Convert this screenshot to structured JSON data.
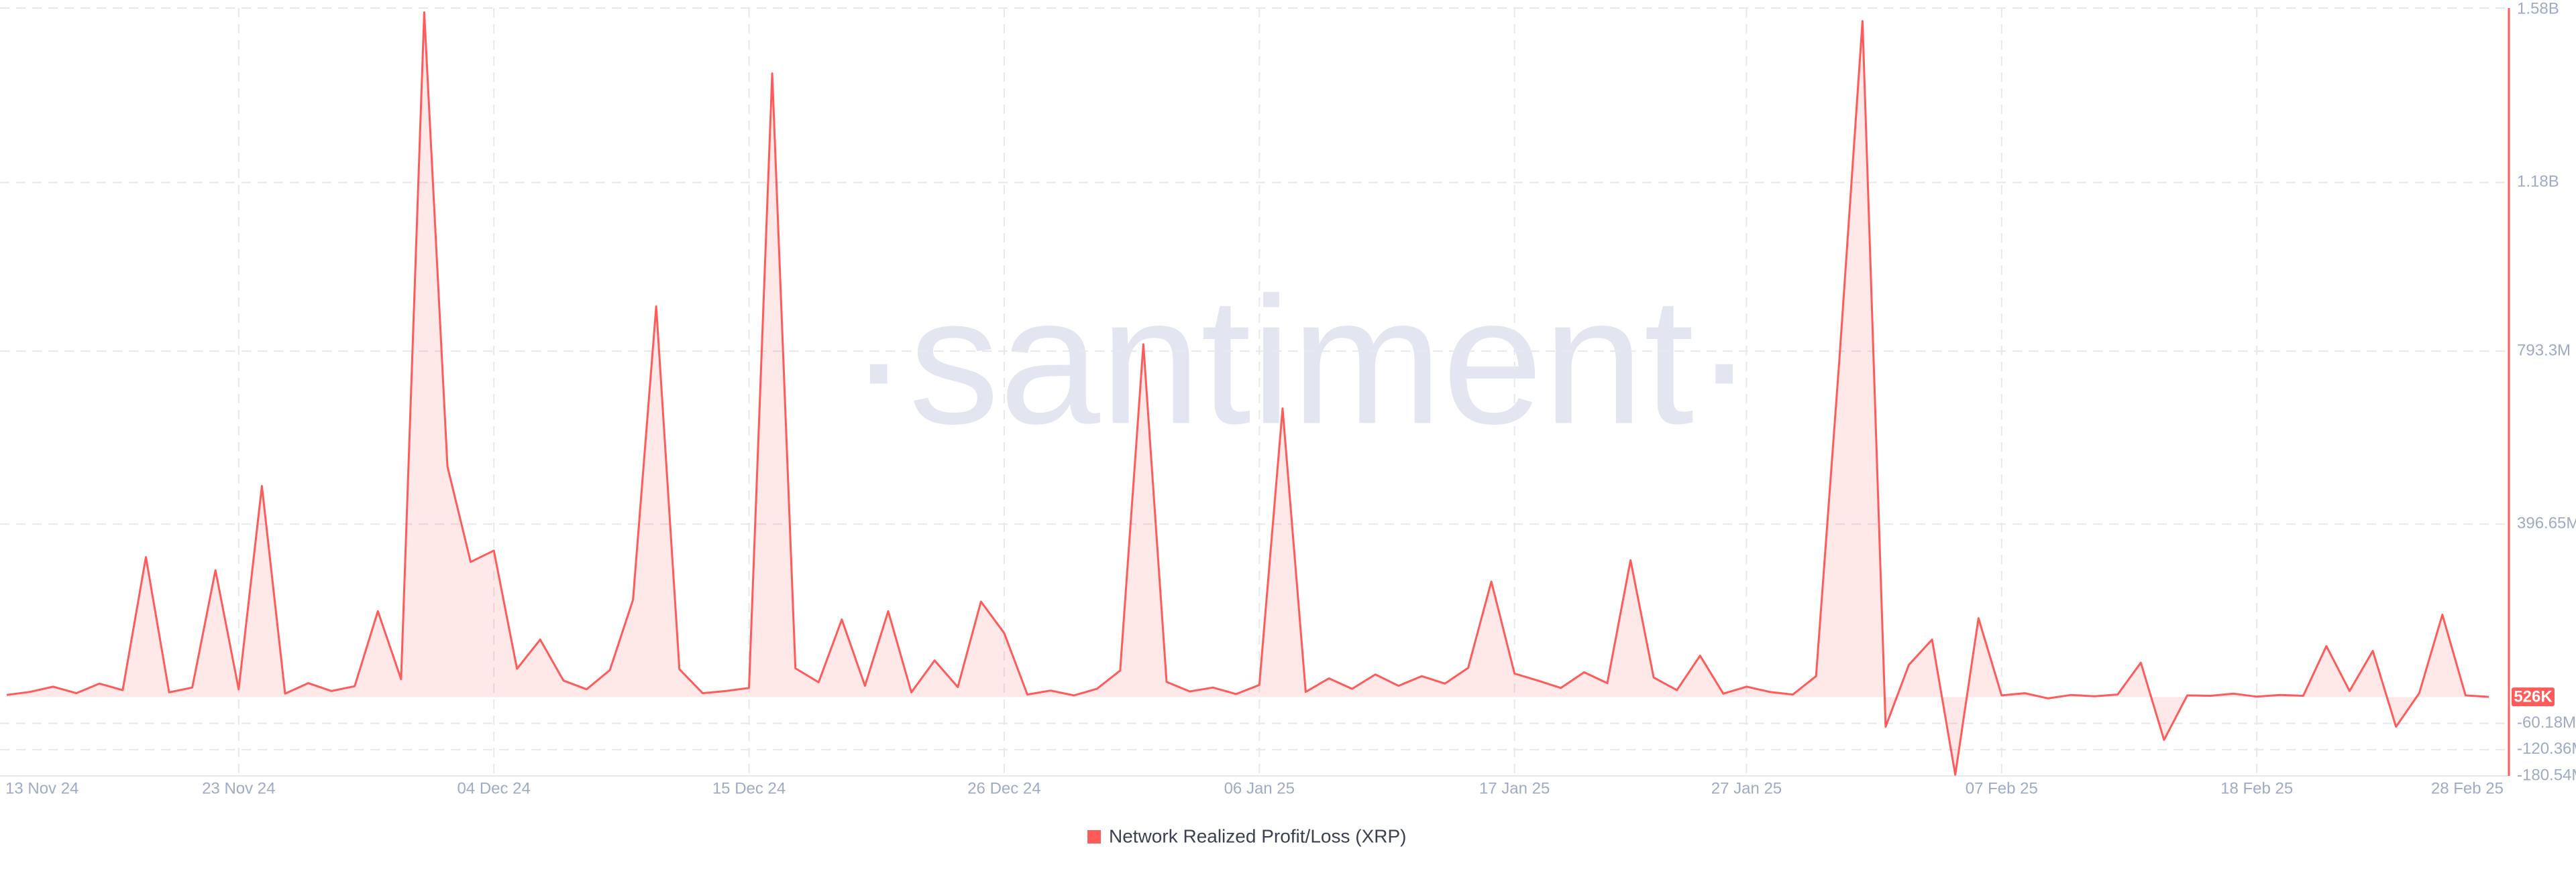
{
  "chart_data": {
    "type": "line",
    "watermark": "·santiment·",
    "x": [
      "13 Nov 24",
      "14 Nov 24",
      "15 Nov 24",
      "16 Nov 24",
      "17 Nov 24",
      "18 Nov 24",
      "19 Nov 24",
      "20 Nov 24",
      "21 Nov 24",
      "22 Nov 24",
      "23 Nov 24",
      "24 Nov 24",
      "25 Nov 24",
      "26 Nov 24",
      "27 Nov 24",
      "28 Nov 24",
      "29 Nov 24",
      "30 Nov 24",
      "01 Dec 24",
      "02 Dec 24",
      "03 Dec 24",
      "04 Dec 24",
      "05 Dec 24",
      "06 Dec 24",
      "07 Dec 24",
      "08 Dec 24",
      "09 Dec 24",
      "10 Dec 24",
      "11 Dec 24",
      "12 Dec 24",
      "13 Dec 24",
      "14 Dec 24",
      "15 Dec 24",
      "16 Dec 24",
      "17 Dec 24",
      "18 Dec 24",
      "19 Dec 24",
      "20 Dec 24",
      "21 Dec 24",
      "22 Dec 24",
      "23 Dec 24",
      "24 Dec 24",
      "25 Dec 24",
      "26 Dec 24",
      "27 Dec 24",
      "28 Dec 24",
      "29 Dec 24",
      "30 Dec 24",
      "31 Dec 24",
      "01 Jan 25",
      "02 Jan 25",
      "03 Jan 25",
      "04 Jan 25",
      "05 Jan 25",
      "06 Jan 25",
      "07 Jan 25",
      "08 Jan 25",
      "09 Jan 25",
      "10 Jan 25",
      "11 Jan 25",
      "12 Jan 25",
      "13 Jan 25",
      "14 Jan 25",
      "15 Jan 25",
      "16 Jan 25",
      "17 Jan 25",
      "18 Jan 25",
      "19 Jan 25",
      "20 Jan 25",
      "21 Jan 25",
      "22 Jan 25",
      "23 Jan 25",
      "24 Jan 25",
      "25 Jan 25",
      "26 Jan 25",
      "27 Jan 25",
      "28 Jan 25",
      "29 Jan 25",
      "30 Jan 25",
      "31 Jan 25",
      "01 Feb 25",
      "02 Feb 25",
      "03 Feb 25",
      "04 Feb 25",
      "05 Feb 25",
      "06 Feb 25",
      "07 Feb 25",
      "08 Feb 25",
      "09 Feb 25",
      "10 Feb 25",
      "11 Feb 25",
      "12 Feb 25",
      "13 Feb 25",
      "14 Feb 25",
      "15 Feb 25",
      "16 Feb 25",
      "17 Feb 25",
      "18 Feb 25",
      "19 Feb 25",
      "20 Feb 25",
      "21 Feb 25",
      "22 Feb 25",
      "23 Feb 25",
      "24 Feb 25",
      "25 Feb 25",
      "26 Feb 25",
      "27 Feb 25",
      "28 Feb 25"
    ],
    "xticks": [
      "13 Nov 24",
      "23 Nov 24",
      "04 Dec 24",
      "15 Dec 24",
      "26 Dec 24",
      "06 Jan 25",
      "17 Jan 25",
      "27 Jan 25",
      "07 Feb 25",
      "18 Feb 25",
      "28 Feb 25"
    ],
    "series": [
      {
        "name": "Network Realized Profit/Loss (XRP)",
        "color": "#ff5b5b",
        "values": [
          5000000.0,
          12000000.0,
          24000000.0,
          9000000.0,
          31000000.0,
          16000000.0,
          321000000.0,
          11000000.0,
          22000000.0,
          291000000.0,
          18000000.0,
          484000000.0,
          8000000.0,
          32000000.0,
          14000000.0,
          25000000.0,
          197000000.0,
          41000000.0,
          1570000000.0,
          529000000.0,
          310000000.0,
          336000000.0,
          65000000.0,
          132000000.0,
          38000000.0,
          18000000.0,
          62000000.0,
          223000000.0,
          896000000.0,
          64000000.0,
          9000000.0,
          14000000.0,
          21000000.0,
          1430000000.0,
          66000000.0,
          34000000.0,
          178000000.0,
          26000000.0,
          197000000.0,
          11000000.0,
          84000000.0,
          23000000.0,
          219000000.0,
          147000000.0,
          6000000.0,
          15000000.0,
          4000000.0,
          19000000.0,
          61000000.0,
          809000000.0,
          35000000.0,
          13000000.0,
          22000000.0,
          7000000.0,
          28000000.0,
          662000000.0,
          12000000.0,
          43000000.0,
          19000000.0,
          52000000.0,
          26000000.0,
          48000000.0,
          31000000.0,
          67000000.0,
          265000000.0,
          54000000.0,
          38000000.0,
          21000000.0,
          57000000.0,
          32000000.0,
          314000000.0,
          45000000.0,
          16000000.0,
          95000000.0,
          8000000.0,
          24000000.0,
          12000000.0,
          6000000.0,
          48000000.0,
          771000000.0,
          1550000000.0,
          -68000000.0,
          74000000.0,
          132000000.0,
          -178000000.0,
          181000000.0,
          4000000.0,
          9000000.0,
          -3000000.0,
          5000000.0,
          2000000.0,
          6000000.0,
          79000000.0,
          -98000000.0,
          4000000.0,
          3000000.0,
          8000000.0,
          1000000.0,
          5000000.0,
          3000000.0,
          117000000.0,
          14000000.0,
          106000000.0,
          -68000000.0,
          9000000.0,
          189000000.0,
          4000000.0,
          526000
        ],
        "last_value_label": "526K"
      }
    ],
    "ylim": [
      -180540000,
      1580000000
    ],
    "yticks": [
      {
        "value": 1580000000,
        "label": "1.58B"
      },
      {
        "value": 1180000000,
        "label": "1.18B"
      },
      {
        "value": 793300000,
        "label": "793.3M"
      },
      {
        "value": 396650000,
        "label": "396.65M"
      },
      {
        "value": -60180000,
        "label": "-60.18M"
      },
      {
        "value": -120360000,
        "label": "-120.36M"
      },
      {
        "value": -180540000,
        "label": "-180.54M"
      }
    ],
    "grid": true,
    "legend": "bottom"
  }
}
